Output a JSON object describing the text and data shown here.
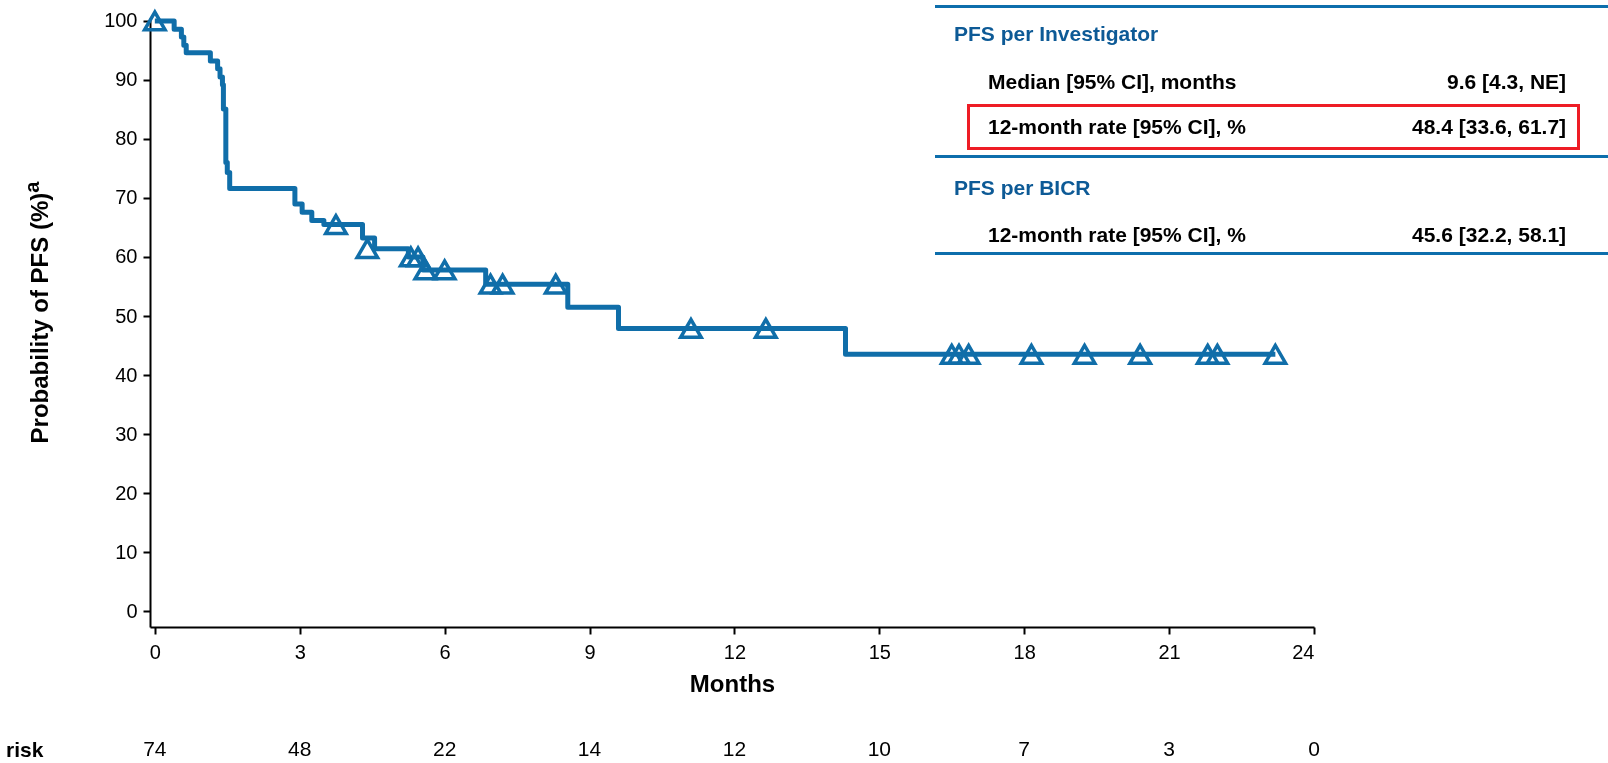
{
  "chart_data": {
    "type": "step",
    "xlabel": "Months",
    "ylabel": "Probability of PFS (%)$^{a}$",
    "xlim": [
      -0.1,
      24
    ],
    "ylim": [
      -2.7,
      100.5
    ],
    "xticks": [
      0,
      3,
      6,
      9,
      12,
      15,
      18,
      21,
      24
    ],
    "yticks": [
      0,
      10,
      20,
      30,
      40,
      50,
      60,
      70,
      80,
      90,
      100
    ],
    "grid": false,
    "series": [
      {
        "color": "#106ea9",
        "x": [
          0,
          0.4,
          0.55,
          0.6,
          0.65,
          1.15,
          1.3,
          1.35,
          1.4,
          1.42,
          1.47,
          1.5,
          1.55,
          2.9,
          3.05,
          3.25,
          3.5,
          4.3,
          4.55,
          5.25,
          5.55,
          6.85,
          8.55,
          9.6,
          14.3,
          23.2
        ],
        "values": [
          100,
          98.6,
          97.3,
          95.9,
          94.6,
          93.2,
          91.9,
          90.5,
          89.2,
          85.1,
          76,
          74.3,
          71.6,
          69,
          67.6,
          66.2,
          65.5,
          63.2,
          61.4,
          60,
          57.8,
          55.4,
          51.5,
          47.9,
          43.5,
          43.5
        ]
      },
      {
        "type": "scatter",
        "marker": "triangle",
        "color": "#106ea9",
        "x": [
          0,
          3.75,
          4.4,
          5.3,
          5.45,
          5.6,
          6.0,
          6.95,
          7.2,
          8.3,
          11.1,
          12.65,
          16.5,
          16.65,
          16.85,
          18.15,
          19.25,
          20.4,
          21.8,
          22.0,
          23.2
        ],
        "values": [
          100,
          65.5,
          61.4,
          60,
          60,
          57.8,
          57.8,
          55.4,
          55.4,
          55.4,
          47.9,
          47.9,
          43.5,
          43.5,
          43.5,
          43.5,
          43.5,
          43.5,
          43.5,
          43.5,
          43.5
        ]
      }
    ],
    "annotations": [
      "PFS per Investigator",
      "Median [95% CI], months",
      "9.6 [4.3, NE]",
      "12-month rate [95% CI], %",
      "48.4 [33.6, 61.7]",
      "PFS per BICR",
      "12-month rate [95% CI], %",
      "45.6 [32.2, 58.1]",
      "risk",
      "74",
      "48",
      "22",
      "14",
      "12",
      "10",
      "7",
      "3",
      "0"
    ]
  }
}
